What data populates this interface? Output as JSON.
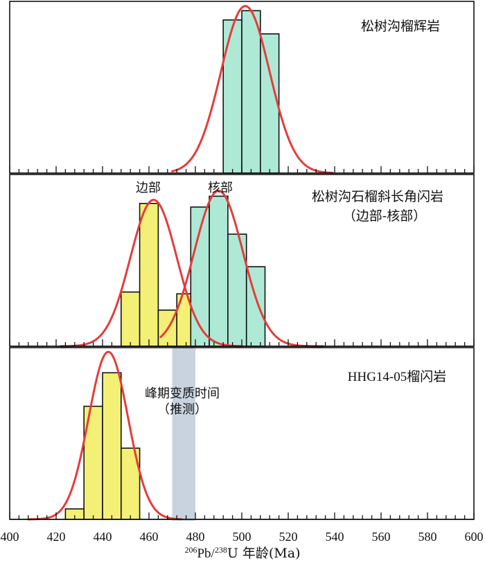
{
  "chart_data": {
    "type": "bar",
    "xlabel_sup1": "206",
    "xlabel_mid": "Pb/",
    "xlabel_sup2": "238",
    "xlabel_rest": "U 年龄(Ma)",
    "xlim": [
      400,
      600
    ],
    "x_ticks": [
      400,
      420,
      440,
      460,
      480,
      500,
      520,
      540,
      560,
      580,
      600
    ],
    "minor_tick_step": 4,
    "shaded_band": {
      "x": [
        470,
        480
      ],
      "color": "#c9d3e0"
    },
    "colors": {
      "green": "#aee9d5",
      "yellow": "#f3f075",
      "curve": "#e63b3b",
      "axis": "#111111"
    },
    "panels": [
      {
        "title": "松树沟榴辉岩",
        "ylim": [
          0,
          7.4
        ],
        "bars": [
          {
            "x0": 492,
            "x1": 500,
            "value": 6.6,
            "color": "green"
          },
          {
            "x0": 500,
            "x1": 508,
            "value": 7.0,
            "color": "green"
          },
          {
            "x0": 508,
            "x1": 516,
            "value": 6.0,
            "color": "green"
          }
        ],
        "curves": [
          {
            "mean": 501.5,
            "sd": 10.5,
            "peak": 7.2,
            "x_range": [
              470,
              539
            ]
          }
        ]
      },
      {
        "title": "松树沟石榴斜长角闪岩",
        "subtitle": "（边部-核部）",
        "annotations": [
          {
            "text": "边部",
            "x": 460
          },
          {
            "text": "核部",
            "x": 491
          }
        ],
        "ylim": [
          0,
          9.5
        ],
        "bars": [
          {
            "x0": 448,
            "x1": 456,
            "value": 3.0,
            "color": "yellow"
          },
          {
            "x0": 456,
            "x1": 464,
            "value": 7.9,
            "color": "yellow"
          },
          {
            "x0": 464,
            "x1": 472,
            "value": 2.0,
            "color": "yellow"
          },
          {
            "x0": 472,
            "x1": 480,
            "value": 2.9,
            "color": "yellow"
          },
          {
            "x0": 478,
            "x1": 486,
            "value": 7.7,
            "color": "green"
          },
          {
            "x0": 486,
            "x1": 494,
            "value": 8.3,
            "color": "green"
          },
          {
            "x0": 494,
            "x1": 502,
            "value": 6.2,
            "color": "green"
          },
          {
            "x0": 502,
            "x1": 510,
            "value": 4.4,
            "color": "green"
          }
        ],
        "curves": [
          {
            "mean": 462,
            "sd": 10,
            "peak": 8.1,
            "x_range": [
              422,
              500
            ]
          },
          {
            "mean": 490,
            "sd": 10.5,
            "peak": 8.6,
            "x_range": [
              465,
              535
            ]
          }
        ]
      },
      {
        "title": "HHG14-05榴闪岩",
        "annotations": [
          {
            "text": "峰期变质时间",
            "x": 473
          },
          {
            "text": "（推测）",
            "x": 473
          }
        ],
        "ylim": [
          0,
          8.2
        ],
        "bars": [
          {
            "x0": 424,
            "x1": 432,
            "value": 0.5,
            "color": "yellow"
          },
          {
            "x0": 432,
            "x1": 440,
            "value": 5.4,
            "color": "yellow"
          },
          {
            "x0": 440,
            "x1": 448,
            "value": 7.0,
            "color": "yellow"
          },
          {
            "x0": 448,
            "x1": 456,
            "value": 3.4,
            "color": "yellow"
          }
        ],
        "curves": [
          {
            "mean": 442.5,
            "sd": 8.5,
            "peak": 8.0,
            "x_range": [
              408,
              474
            ]
          }
        ]
      }
    ]
  }
}
